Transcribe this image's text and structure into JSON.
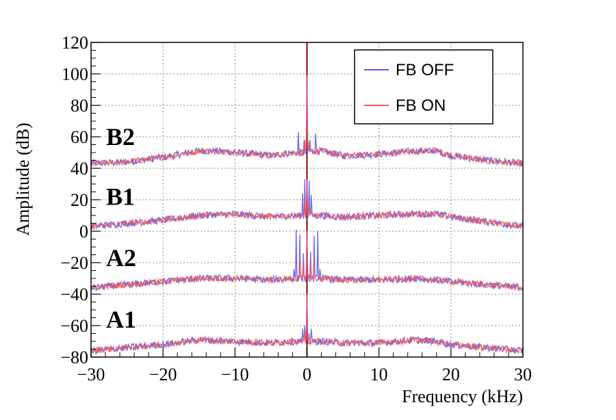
{
  "chart_data": {
    "type": "line",
    "xlabel": "Frequency (kHz)",
    "ylabel": "Amplitude (dB)",
    "xlim": [
      -30,
      30
    ],
    "ylim": [
      -80,
      120
    ],
    "xticks": [
      -30,
      -20,
      -10,
      0,
      10,
      20,
      30
    ],
    "yticks": [
      -80,
      -60,
      -40,
      -20,
      0,
      20,
      40,
      60,
      80,
      100,
      120
    ],
    "xtick_labels": [
      "−30",
      "−20",
      "−10",
      "0",
      "10",
      "20",
      "30"
    ],
    "ytick_labels": [
      "−80",
      "−60",
      "−40",
      "−20",
      "0",
      "20",
      "40",
      "60",
      "80",
      "100",
      "120"
    ],
    "grid": true,
    "legend_position": "top-right",
    "legend": [
      {
        "name": "FB OFF",
        "color": "#5555ee"
      },
      {
        "name": "FB ON",
        "color": "#ee5555"
      }
    ],
    "colors": {
      "fb_off": "#5555ee",
      "fb_on": "#ee5555",
      "center_line": "#8b0000"
    },
    "traces": [
      {
        "label": "B2",
        "label_y": 60,
        "envelope": {
          "x": [
            -30,
            -25,
            -20,
            -15,
            -12,
            -5,
            -2,
            0,
            2,
            5,
            10,
            15,
            18,
            20,
            25,
            30
          ],
          "y": [
            43,
            44,
            47,
            51,
            51,
            48,
            50,
            99,
            51,
            48,
            49,
            51,
            51,
            48,
            45,
            43
          ]
        },
        "spurs_off": [
          {
            "x": -1.2,
            "y": 63
          },
          {
            "x": 1.2,
            "y": 62
          },
          {
            "x": -0.4,
            "y": 58
          },
          {
            "x": 0.4,
            "y": 58
          }
        ],
        "spurs_on": [
          {
            "x": -0.3,
            "y": 58
          },
          {
            "x": 0.3,
            "y": 57
          }
        ]
      },
      {
        "label": "B1",
        "label_y": 22,
        "envelope": {
          "x": [
            -30,
            -25,
            -20,
            -15,
            -10,
            -5,
            -2,
            0,
            2,
            5,
            10,
            15,
            18,
            20,
            25,
            30
          ],
          "y": [
            3,
            5,
            7,
            10,
            11,
            9,
            10,
            33,
            10,
            9,
            10,
            11,
            11,
            9,
            6,
            3
          ]
        },
        "spurs_off": [
          {
            "x": -0.6,
            "y": 24
          },
          {
            "x": 0.6,
            "y": 23
          },
          {
            "x": -0.3,
            "y": 33
          },
          {
            "x": 0.3,
            "y": 32
          }
        ],
        "spurs_on": [
          {
            "x": -0.3,
            "y": 20
          },
          {
            "x": 0.3,
            "y": 19
          }
        ]
      },
      {
        "label": "A2",
        "label_y": -17,
        "envelope": {
          "x": [
            -30,
            -25,
            -20,
            -15,
            -10,
            -5,
            -2,
            0,
            2,
            5,
            10,
            15,
            18,
            20,
            25,
            30
          ],
          "y": [
            -36,
            -34,
            -32,
            -30,
            -30,
            -31,
            -30,
            0,
            -30,
            -31,
            -31,
            -30,
            -31,
            -32,
            -34,
            -36
          ]
        },
        "spurs_off": [
          {
            "x": -1.5,
            "y": 1
          },
          {
            "x": 1.5,
            "y": 0
          },
          {
            "x": -1.0,
            "y": -2
          },
          {
            "x": 1.0,
            "y": -3
          },
          {
            "x": -0.5,
            "y": -14
          },
          {
            "x": 0.5,
            "y": -13
          },
          {
            "x": -1.8,
            "y": -24
          },
          {
            "x": 1.8,
            "y": -24
          }
        ],
        "spurs_on": [
          {
            "x": -1.0,
            "y": -17
          },
          {
            "x": 1.0,
            "y": -16
          },
          {
            "x": -0.5,
            "y": -20
          },
          {
            "x": 0.5,
            "y": -20
          }
        ]
      },
      {
        "label": "A1",
        "label_y": -56,
        "envelope": {
          "x": [
            -30,
            -25,
            -20,
            -15,
            -10,
            -5,
            -2,
            0,
            2,
            5,
            10,
            15,
            18,
            20,
            25,
            30
          ],
          "y": [
            -76,
            -74,
            -72,
            -69,
            -70,
            -71,
            -70,
            -40,
            -70,
            -71,
            -71,
            -69,
            -70,
            -72,
            -74,
            -76
          ]
        },
        "spurs_off": [
          {
            "x": -0.6,
            "y": -62
          },
          {
            "x": 0.6,
            "y": -62
          },
          {
            "x": -0.3,
            "y": -60
          }
        ],
        "spurs_on": [
          {
            "x": -0.3,
            "y": -64
          },
          {
            "x": 0.3,
            "y": -65
          }
        ]
      }
    ]
  }
}
